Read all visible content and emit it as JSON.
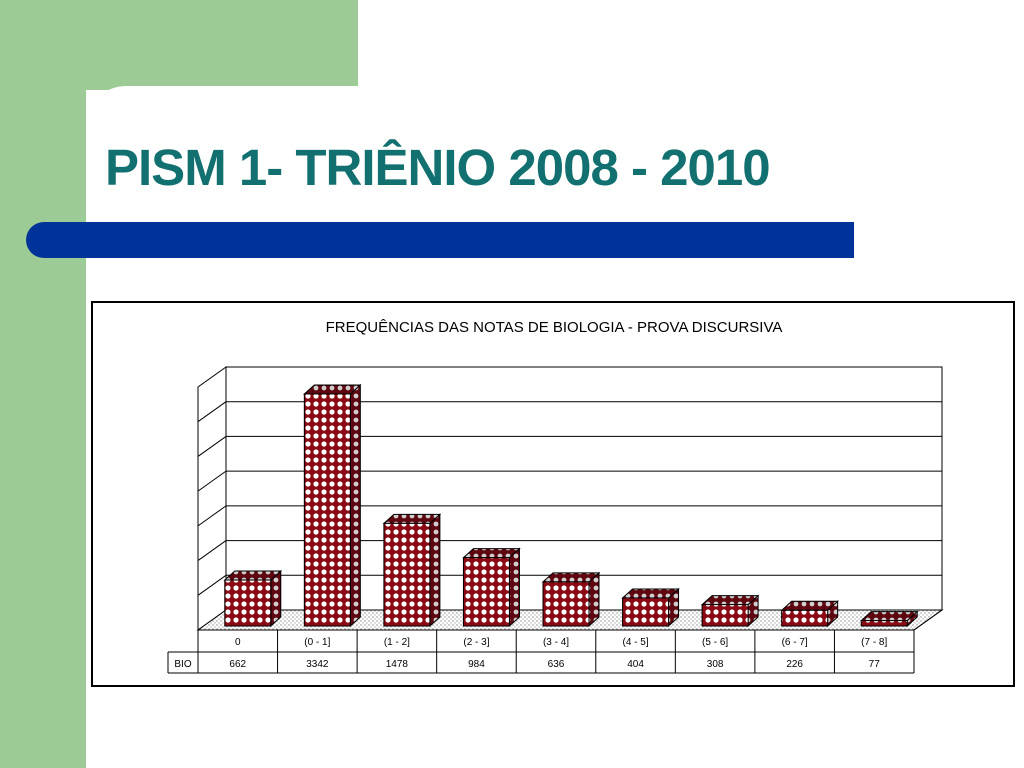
{
  "slide": {
    "title": "PISM 1- TRIÊNIO 2008 - 2010"
  },
  "colors": {
    "title": "#127070",
    "accent_bar": "#003399",
    "side_band": "#9dcb96",
    "bar_fill": "#8b0a14",
    "bar_dots": "#ffffff"
  },
  "chart_data": {
    "type": "bar",
    "title": "FREQUÊNCIAS DAS NOTAS DE BIOLOGIA - PROVA DISCURSIVA",
    "categories": [
      "0",
      "(0 - 1]",
      "(1 - 2]",
      "(2 - 3]",
      "(3 - 4]",
      "(4 - 5]",
      "(5 - 6]",
      "(6 - 7]",
      "(7 - 8]"
    ],
    "series": [
      {
        "name": "BIO",
        "values": [
          662,
          3342,
          1478,
          984,
          636,
          404,
          308,
          226,
          77
        ]
      }
    ],
    "ylim": [
      0,
      3500
    ],
    "grid": true,
    "style": "3d",
    "data_table": true
  }
}
